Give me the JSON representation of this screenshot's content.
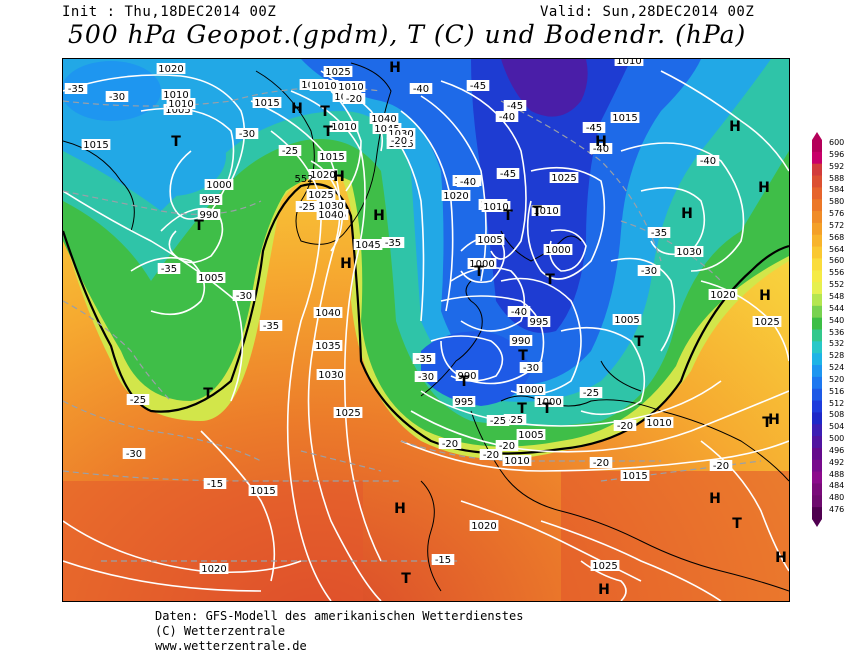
{
  "header": {
    "init": "Init : Thu,18DEC2014 00Z",
    "valid": "Valid: Sun,28DEC2014 00Z",
    "title": "500 hPa Geopot.(gpdm), T (C) und Bodendr. (hPa)"
  },
  "footer": {
    "line1": "Daten: GFS-Modell des amerikanischen Wetterdienstes",
    "line2": "(C) Wetterzentrale",
    "line3": "www.wetterzentrale.de"
  },
  "scale": {
    "labels": [
      "600",
      "596",
      "592",
      "588",
      "584",
      "580",
      "576",
      "572",
      "568",
      "564",
      "560",
      "556",
      "552",
      "548",
      "544",
      "540",
      "536",
      "532",
      "528",
      "524",
      "520",
      "516",
      "512",
      "508",
      "504",
      "500",
      "496",
      "492",
      "488",
      "484",
      "480",
      "476"
    ],
    "colors": [
      "#b4005a",
      "#c8006a",
      "#d23c3c",
      "#dc5032",
      "#e6642d",
      "#ec7828",
      "#f08c28",
      "#f4a028",
      "#f8b42c",
      "#fac832",
      "#fadc3c",
      "#f5eb46",
      "#e6f050",
      "#b4e650",
      "#78d250",
      "#3cbe46",
      "#32c88c",
      "#28c8c8",
      "#1eb4e6",
      "#1e96f0",
      "#1e78f0",
      "#1e5ae6",
      "#1e3cdc",
      "#1e28c8",
      "#3c1eb4",
      "#5014a0",
      "#640a8c",
      "#780a8c",
      "#8c0a8c",
      "#7a0a7a",
      "#6e0a6e",
      "#500050"
    ]
  },
  "map": {
    "pressure_labels": [
      "1020",
      "1010",
      "1005",
      "1015",
      "1025",
      "1020",
      "1015",
      "1010",
      "1040",
      "1045",
      "1015",
      "1020",
      "1000",
      "995",
      "990",
      "1025",
      "1030",
      "1035",
      "1040",
      "1045",
      "1005",
      "1040",
      "1035",
      "1030",
      "1025",
      "1010",
      "1015",
      "1020",
      "1005",
      "1010",
      "1010",
      "1000",
      "1000",
      "995",
      "990",
      "990",
      "995",
      "1000",
      "1000",
      "1005",
      "1010",
      "1010",
      "1015",
      "1020",
      "1025",
      "1005",
      "1015",
      "1030",
      "1020",
      "1025",
      "1010",
      "1015",
      "1020",
      "1025",
      "1030",
      "1015",
      "1010",
      "1005",
      "1010",
      "1010"
    ],
    "temperature_labels": [
      "-35",
      "-30",
      "-30",
      "-25",
      "-35",
      "-30",
      "-35",
      "-40",
      "-45",
      "-45",
      "-40",
      "-40",
      "-40",
      "-45",
      "-45",
      "-40",
      "-35",
      "-30",
      "-35",
      "-30",
      "-25",
      "-25",
      "-30",
      "-40",
      "-35",
      "-30",
      "-25",
      "-20",
      "-20",
      "-20",
      "-25",
      "-20",
      "-20",
      "-20",
      "-15",
      "-15",
      "-25",
      "-20",
      "-20"
    ],
    "high_symbols": [
      "H",
      "H",
      "H",
      "H",
      "H",
      "H",
      "H",
      "H",
      "H",
      "H",
      "H",
      "H",
      "H",
      "H",
      "H"
    ],
    "low_symbols": [
      "T",
      "T",
      "T",
      "T",
      "T",
      "T",
      "T",
      "T",
      "T",
      "T",
      "T",
      "T",
      "T",
      "T",
      "T",
      "T",
      "T"
    ],
    "gpdm_552_label": "552"
  }
}
